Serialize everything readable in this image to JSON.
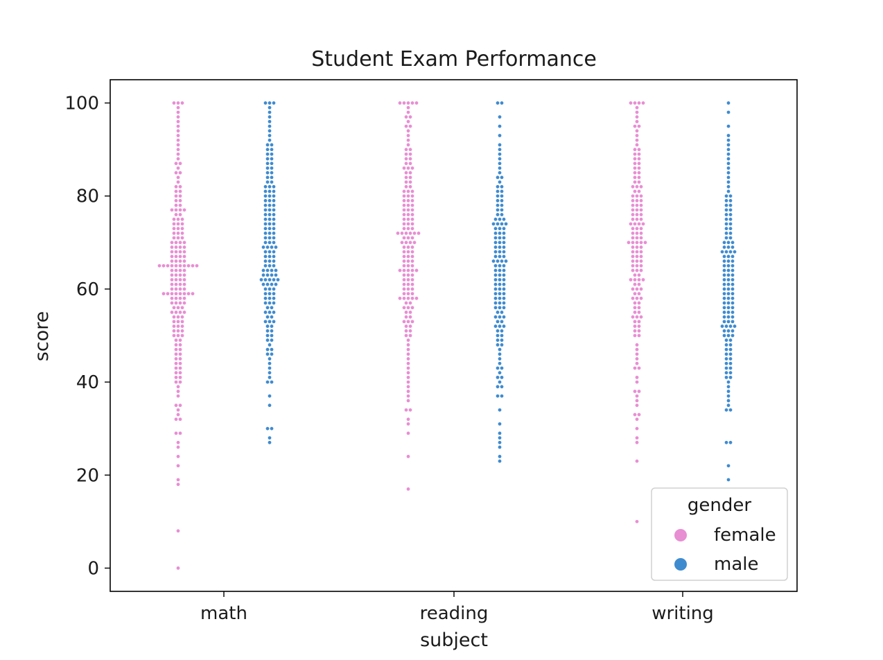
{
  "chart_data": {
    "type": "scatter",
    "subtype": "swarm",
    "title": "Student Exam Performance",
    "xlabel": "subject",
    "ylabel": "score",
    "categories": [
      "math",
      "reading",
      "writing"
    ],
    "ylim": [
      -5,
      105
    ],
    "yticks": [
      0,
      20,
      40,
      60,
      80,
      100
    ],
    "grid": false,
    "legend": {
      "title": "gender",
      "position": "lower-right",
      "entries": [
        "female",
        "male"
      ]
    },
    "colors": {
      "female": "#e88ed3",
      "male": "#3f8bd0"
    },
    "series": [
      {
        "name": "female",
        "color": "#e88ed3",
        "groups": [
          {
            "category": "math",
            "values": [
              0,
              8,
              18,
              19,
              22,
              24,
              26,
              27,
              29,
              29,
              32,
              32,
              33,
              34,
              35,
              35,
              37,
              38,
              39,
              40,
              40,
              41,
              41,
              42,
              42,
              43,
              43,
              44,
              44,
              45,
              45,
              46,
              46,
              47,
              47,
              48,
              48,
              49,
              49,
              50,
              50,
              50,
              51,
              51,
              51,
              52,
              52,
              52,
              53,
              53,
              53,
              54,
              54,
              54,
              55,
              55,
              55,
              55,
              56,
              56,
              56,
              57,
              57,
              57,
              57,
              58,
              58,
              58,
              58,
              59,
              59,
              59,
              59,
              59,
              59,
              59,
              59,
              60,
              60,
              60,
              60,
              61,
              61,
              61,
              61,
              62,
              62,
              62,
              62,
              63,
              63,
              63,
              63,
              64,
              64,
              64,
              64,
              65,
              65,
              65,
              65,
              65,
              65,
              65,
              65,
              65,
              65,
              66,
              66,
              66,
              66,
              67,
              67,
              67,
              67,
              68,
              68,
              68,
              68,
              69,
              69,
              69,
              69,
              70,
              70,
              70,
              70,
              71,
              71,
              71,
              72,
              72,
              72,
              73,
              73,
              73,
              74,
              74,
              74,
              75,
              75,
              75,
              76,
              76,
              77,
              77,
              77,
              77,
              78,
              78,
              79,
              79,
              80,
              80,
              81,
              81,
              82,
              82,
              83,
              84,
              85,
              85,
              86,
              87,
              87,
              88,
              89,
              90,
              91,
              92,
              93,
              94,
              95,
              96,
              97,
              98,
              99,
              100,
              100,
              100
            ]
          },
          {
            "category": "reading",
            "values": [
              17,
              24,
              29,
              31,
              32,
              34,
              34,
              36,
              37,
              38,
              39,
              40,
              41,
              42,
              43,
              44,
              45,
              46,
              47,
              48,
              49,
              50,
              50,
              51,
              51,
              52,
              52,
              53,
              53,
              53,
              54,
              54,
              55,
              55,
              56,
              56,
              56,
              57,
              57,
              58,
              58,
              58,
              58,
              58,
              59,
              59,
              59,
              60,
              60,
              60,
              61,
              61,
              61,
              62,
              62,
              62,
              63,
              63,
              63,
              64,
              64,
              64,
              64,
              64,
              65,
              65,
              65,
              66,
              66,
              66,
              67,
              67,
              67,
              68,
              68,
              68,
              69,
              69,
              69,
              70,
              70,
              70,
              70,
              71,
              71,
              71,
              72,
              72,
              72,
              72,
              72,
              72,
              73,
              73,
              73,
              74,
              74,
              74,
              75,
              75,
              75,
              76,
              76,
              76,
              77,
              77,
              77,
              78,
              78,
              78,
              79,
              79,
              79,
              80,
              80,
              80,
              81,
              81,
              81,
              82,
              82,
              83,
              83,
              84,
              84,
              85,
              85,
              86,
              86,
              86,
              87,
              87,
              88,
              88,
              89,
              89,
              90,
              90,
              91,
              92,
              93,
              94,
              95,
              95,
              96,
              97,
              97,
              98,
              99,
              100,
              100,
              100,
              100,
              100
            ]
          },
          {
            "category": "writing",
            "values": [
              10,
              23,
              27,
              28,
              30,
              32,
              33,
              33,
              35,
              36,
              37,
              38,
              38,
              40,
              41,
              43,
              43,
              44,
              45,
              46,
              47,
              48,
              50,
              50,
              51,
              51,
              52,
              52,
              53,
              53,
              54,
              54,
              54,
              55,
              55,
              56,
              56,
              57,
              57,
              58,
              58,
              58,
              59,
              59,
              60,
              60,
              60,
              61,
              61,
              62,
              62,
              62,
              62,
              63,
              63,
              64,
              64,
              64,
              65,
              65,
              65,
              66,
              66,
              66,
              67,
              67,
              67,
              68,
              68,
              68,
              69,
              69,
              69,
              70,
              70,
              70,
              70,
              70,
              71,
              71,
              71,
              72,
              72,
              72,
              73,
              73,
              73,
              74,
              74,
              74,
              74,
              75,
              75,
              75,
              76,
              76,
              76,
              77,
              77,
              77,
              78,
              78,
              78,
              79,
              79,
              79,
              80,
              80,
              80,
              81,
              81,
              82,
              82,
              82,
              83,
              83,
              84,
              84,
              85,
              85,
              86,
              86,
              87,
              87,
              88,
              88,
              89,
              89,
              90,
              90,
              91,
              92,
              93,
              94,
              95,
              95,
              96,
              97,
              98,
              99,
              100,
              100,
              100,
              100
            ]
          }
        ]
      },
      {
        "name": "male",
        "color": "#3f8bd0",
        "groups": [
          {
            "category": "math",
            "values": [
              27,
              28,
              30,
              30,
              35,
              37,
              40,
              40,
              41,
              42,
              43,
              44,
              45,
              46,
              46,
              47,
              47,
              48,
              49,
              49,
              50,
              50,
              51,
              51,
              52,
              52,
              53,
              53,
              53,
              54,
              54,
              55,
              55,
              55,
              56,
              56,
              57,
              57,
              57,
              58,
              58,
              58,
              59,
              59,
              59,
              60,
              60,
              60,
              61,
              61,
              61,
              61,
              62,
              62,
              62,
              62,
              62,
              63,
              63,
              63,
              63,
              64,
              64,
              64,
              64,
              65,
              65,
              65,
              66,
              66,
              66,
              67,
              67,
              67,
              68,
              68,
              68,
              69,
              69,
              69,
              69,
              70,
              70,
              70,
              71,
              71,
              71,
              72,
              72,
              72,
              73,
              73,
              73,
              74,
              74,
              74,
              75,
              75,
              75,
              76,
              76,
              76,
              77,
              77,
              77,
              78,
              78,
              78,
              79,
              79,
              79,
              80,
              80,
              80,
              81,
              81,
              81,
              82,
              82,
              82,
              83,
              83,
              84,
              84,
              85,
              85,
              86,
              86,
              87,
              87,
              88,
              88,
              89,
              89,
              90,
              90,
              91,
              91,
              92,
              93,
              94,
              95,
              96,
              97,
              98,
              99,
              100,
              100,
              100
            ]
          },
          {
            "category": "reading",
            "values": [
              23,
              24,
              26,
              27,
              28,
              29,
              31,
              34,
              37,
              37,
              39,
              39,
              40,
              41,
              41,
              42,
              43,
              43,
              44,
              45,
              46,
              47,
              48,
              48,
              49,
              49,
              50,
              50,
              51,
              51,
              52,
              52,
              52,
              53,
              53,
              54,
              54,
              54,
              55,
              55,
              56,
              56,
              56,
              57,
              57,
              57,
              58,
              58,
              58,
              59,
              59,
              59,
              60,
              60,
              60,
              61,
              61,
              61,
              62,
              62,
              62,
              63,
              63,
              63,
              64,
              64,
              64,
              65,
              65,
              65,
              66,
              66,
              66,
              66,
              67,
              67,
              67,
              68,
              68,
              68,
              69,
              69,
              69,
              70,
              70,
              70,
              71,
              71,
              71,
              72,
              72,
              72,
              73,
              73,
              73,
              74,
              74,
              74,
              74,
              75,
              75,
              75,
              76,
              76,
              77,
              77,
              78,
              78,
              79,
              79,
              80,
              80,
              81,
              81,
              82,
              82,
              83,
              84,
              84,
              85,
              86,
              87,
              88,
              89,
              90,
              91,
              93,
              95,
              97,
              100,
              100
            ]
          },
          {
            "category": "writing",
            "values": [
              19,
              22,
              27,
              27,
              34,
              34,
              35,
              36,
              37,
              38,
              39,
              40,
              41,
              41,
              42,
              42,
              43,
              43,
              44,
              44,
              45,
              45,
              46,
              46,
              47,
              47,
              48,
              48,
              49,
              49,
              50,
              50,
              50,
              51,
              51,
              51,
              52,
              52,
              52,
              52,
              53,
              53,
              53,
              54,
              54,
              54,
              55,
              55,
              55,
              56,
              56,
              56,
              57,
              57,
              57,
              58,
              58,
              58,
              59,
              59,
              59,
              60,
              60,
              60,
              61,
              61,
              61,
              62,
              62,
              62,
              63,
              63,
              63,
              64,
              64,
              64,
              65,
              65,
              65,
              66,
              66,
              66,
              67,
              67,
              67,
              68,
              68,
              68,
              68,
              69,
              69,
              69,
              70,
              70,
              70,
              71,
              71,
              72,
              72,
              73,
              73,
              74,
              74,
              75,
              75,
              76,
              76,
              77,
              77,
              78,
              78,
              79,
              79,
              80,
              80,
              81,
              82,
              83,
              84,
              85,
              86,
              87,
              88,
              89,
              90,
              91,
              92,
              93,
              95,
              98,
              100
            ]
          }
        ]
      }
    ]
  }
}
